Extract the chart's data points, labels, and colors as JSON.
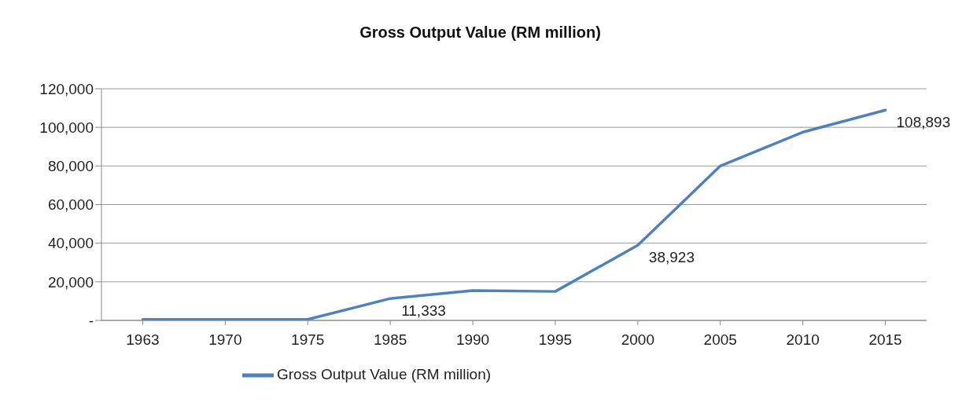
{
  "chart_data": {
    "type": "line",
    "title": "Gross Output Value (RM million)",
    "categories": [
      "1963",
      "1970",
      "1975",
      "1985",
      "1990",
      "1995",
      "2000",
      "2005",
      "2010",
      "2015"
    ],
    "series": [
      {
        "name": "Gross Output Value (RM million)",
        "color": "#4f81bd",
        "values": [
          500,
          500,
          500,
          11333,
          15500,
          15000,
          38923,
          80000,
          97500,
          108893
        ],
        "value_labels": [
          null,
          null,
          null,
          "11,333",
          null,
          null,
          "38,923",
          null,
          null,
          "108,893"
        ]
      }
    ],
    "ylim": [
      0,
      120000
    ],
    "yticks": [
      {
        "value": 0,
        "label": "-"
      },
      {
        "value": 20000,
        "label": "20,000"
      },
      {
        "value": 40000,
        "label": "40,000"
      },
      {
        "value": 60000,
        "label": "60,000"
      },
      {
        "value": 80000,
        "label": "80,000"
      },
      {
        "value": 100000,
        "label": "100,000"
      },
      {
        "value": 120000,
        "label": "120,000"
      }
    ],
    "grid": "y",
    "legend": "bottom",
    "marker": "none",
    "line_style": "solid"
  }
}
